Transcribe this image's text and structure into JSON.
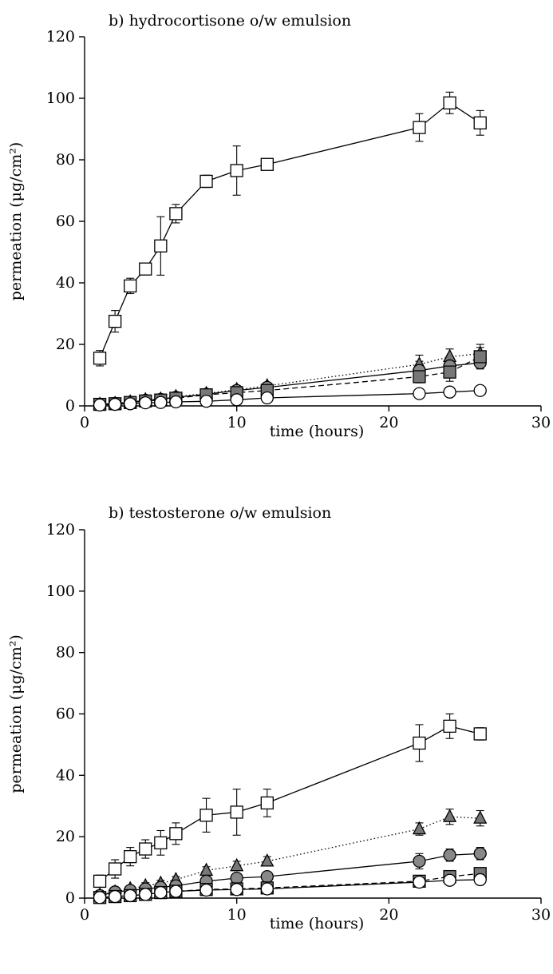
{
  "chart_data": [
    {
      "type": "line",
      "title": "b) hydrocortisone o/w emulsion",
      "xlabel": "time (hours)",
      "ylabel": "permeation (μg/cm²)",
      "xlim": [
        0,
        30
      ],
      "ylim": [
        0,
        120
      ],
      "xticks": [
        "0",
        "10",
        "20",
        "30"
      ],
      "yticks": [
        "0",
        "20",
        "40",
        "60",
        "80",
        "100",
        "120"
      ],
      "series": [
        {
          "marker": "square",
          "fill": "#ffffff",
          "line": "solid",
          "x": [
            1,
            2,
            3,
            4,
            5,
            6,
            8,
            10,
            12,
            22,
            24,
            26
          ],
          "values": [
            15.5,
            27.5,
            39,
            44.5,
            52,
            62.5,
            73,
            76.5,
            78.5,
            90.5,
            98.5,
            92
          ],
          "err": [
            2.5,
            3.5,
            2.5,
            1.5,
            9.5,
            3,
            2,
            8,
            1,
            4.5,
            3.5,
            4
          ]
        },
        {
          "marker": "triangle",
          "fill": "#777777",
          "line": "dotted",
          "x": [
            1,
            2,
            3,
            4,
            5,
            6,
            8,
            10,
            12,
            22,
            24,
            26
          ],
          "values": [
            0.5,
            0.8,
            1.3,
            2,
            2.2,
            3,
            4,
            5.3,
            6.5,
            13.5,
            16,
            17
          ],
          "err": [
            0.3,
            0.4,
            0.4,
            0.5,
            0.6,
            0.7,
            1,
            1,
            1,
            3,
            2.5,
            3
          ]
        },
        {
          "marker": "circle",
          "fill": "#888888",
          "line": "solid",
          "x": [
            1,
            2,
            3,
            4,
            5,
            6,
            8,
            10,
            12,
            22,
            24,
            26
          ],
          "values": [
            0.5,
            0.8,
            1.2,
            1.8,
            2.1,
            2.8,
            3.8,
            5,
            6,
            11.5,
            13,
            14
          ],
          "err": [
            0.3,
            0.4,
            0.4,
            0.5,
            0.6,
            0.7,
            1,
            1,
            1,
            3,
            3,
            2
          ]
        },
        {
          "marker": "square",
          "fill": "#777777",
          "line": "dashed",
          "x": [
            1,
            2,
            3,
            4,
            5,
            6,
            8,
            10,
            12,
            22,
            24,
            26
          ],
          "values": [
            0.5,
            0.7,
            1.1,
            1.6,
            1.9,
            2.5,
            3.6,
            4.3,
            5,
            9.5,
            11,
            16
          ],
          "err": [
            0.3,
            0.4,
            0.4,
            0.5,
            0.6,
            0.7,
            1,
            1,
            1,
            2,
            3,
            3
          ]
        },
        {
          "marker": "circle",
          "fill": "#ffffff",
          "line": "solid",
          "x": [
            1,
            2,
            3,
            4,
            5,
            6,
            8,
            10,
            12,
            22,
            24,
            26
          ],
          "values": [
            0.3,
            0.5,
            0.7,
            1,
            1.1,
            1.3,
            1.5,
            2,
            2.6,
            4,
            4.5,
            5
          ],
          "err": [
            0.2,
            0.2,
            0.2,
            0.3,
            0.3,
            0.3,
            0.4,
            0.5,
            0.6,
            1,
            1,
            1
          ]
        }
      ]
    },
    {
      "type": "line",
      "title": "b) testosterone o/w emulsion",
      "xlabel": "time (hours)",
      "ylabel": "permeation (μg/cm²)",
      "xlim": [
        0,
        30
      ],
      "ylim": [
        0,
        120
      ],
      "xticks": [
        "0",
        "10",
        "20",
        "30"
      ],
      "yticks": [
        "0",
        "20",
        "40",
        "60",
        "80",
        "100",
        "120"
      ],
      "series": [
        {
          "marker": "square",
          "fill": "#ffffff",
          "line": "solid",
          "x": [
            1,
            2,
            3,
            4,
            5,
            6,
            8,
            10,
            12,
            22,
            24,
            26
          ],
          "values": [
            5.5,
            9.5,
            13.5,
            16,
            18,
            21,
            27,
            28,
            31,
            50.5,
            56,
            53.5
          ],
          "err": [
            2,
            3,
            3,
            3,
            4,
            3.5,
            5.5,
            7.5,
            4.5,
            6,
            4,
            2
          ]
        },
        {
          "marker": "triangle",
          "fill": "#777777",
          "line": "dotted",
          "x": [
            1,
            2,
            3,
            4,
            5,
            6,
            8,
            10,
            12,
            22,
            24,
            26
          ],
          "values": [
            1,
            2,
            3,
            4,
            4.8,
            6,
            9,
            10.5,
            12,
            22.5,
            26.5,
            26
          ],
          "err": [
            0.5,
            0.8,
            1,
            1,
            1,
            1,
            1.2,
            1.5,
            1.5,
            2,
            2.5,
            2.5
          ]
        },
        {
          "marker": "circle",
          "fill": "#888888",
          "line": "solid",
          "x": [
            1,
            2,
            3,
            4,
            5,
            6,
            8,
            10,
            12,
            22,
            24,
            26
          ],
          "values": [
            0.8,
            2,
            2.5,
            3,
            3.5,
            4,
            5.5,
            6.5,
            7,
            12,
            14,
            14.5
          ],
          "err": [
            0.5,
            0.8,
            1,
            1,
            1,
            1,
            1,
            1.2,
            1.2,
            2.5,
            2,
            2
          ]
        },
        {
          "marker": "square",
          "fill": "#777777",
          "line": "dashed",
          "x": [
            1,
            2,
            3,
            4,
            5,
            6,
            8,
            10,
            12,
            22,
            24,
            26
          ],
          "values": [
            0.2,
            0.5,
            0.8,
            1.2,
            1.8,
            2.2,
            2.8,
            3,
            3.3,
            5.5,
            7,
            8
          ],
          "err": [
            0.2,
            0.3,
            0.3,
            0.4,
            0.5,
            0.5,
            0.6,
            0.6,
            0.7,
            1,
            1,
            1
          ]
        },
        {
          "marker": "circle",
          "fill": "#ffffff",
          "line": "solid",
          "x": [
            1,
            2,
            3,
            4,
            5,
            6,
            8,
            10,
            12,
            22,
            24,
            26
          ],
          "values": [
            0.2,
            0.5,
            0.8,
            1.2,
            1.8,
            2.2,
            2.6,
            2.8,
            3,
            5.2,
            5.8,
            6
          ],
          "err": [
            0.2,
            0.3,
            0.3,
            0.4,
            0.5,
            0.5,
            0.6,
            0.6,
            0.7,
            1,
            1,
            1
          ]
        }
      ]
    }
  ]
}
